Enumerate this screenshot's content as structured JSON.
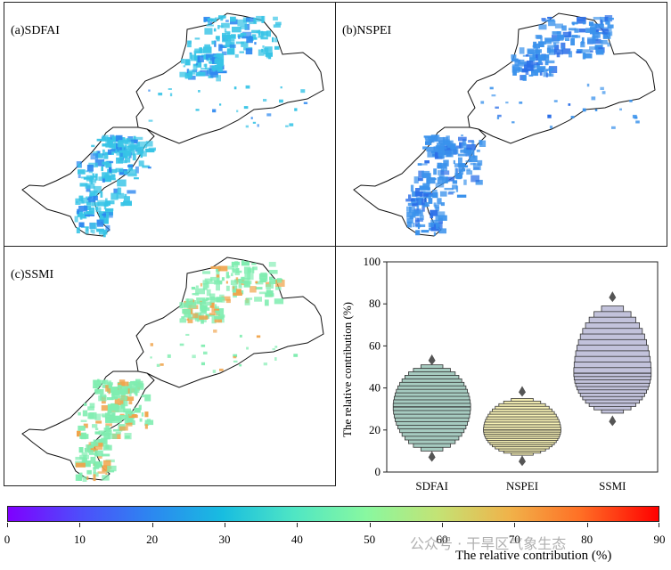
{
  "panels": {
    "a": {
      "label": "(a)SDFAI",
      "fill": "#37c4e6",
      "accent": "#2c87f0"
    },
    "b": {
      "label": "(b)NSPEI",
      "fill": "#3a92ec",
      "accent": "#2c6fe8"
    },
    "c": {
      "label": "(c)SSMI",
      "fill": "#7fedb0",
      "accent": "#f0a34a"
    }
  },
  "chart_data": {
    "type": "letter-value boxplot",
    "ylabel": "The relative contribution (%)",
    "ylim": [
      0,
      100
    ],
    "yticks": [
      0,
      20,
      40,
      60,
      80,
      100
    ],
    "categories": [
      "SDFAI",
      "NSPEI",
      "SSMI"
    ],
    "series": [
      {
        "name": "SDFAI",
        "median": 31,
        "q1": 25,
        "q3": 37,
        "min": 10,
        "max": 51,
        "outlier_low": 7,
        "outlier_high": 53,
        "color": "#a6cbc0"
      },
      {
        "name": "NSPEI",
        "median": 20,
        "q1": 17,
        "q3": 24,
        "min": 8,
        "max": 35,
        "outlier_low": 5,
        "outlier_high": 38,
        "color": "#f6f0b4"
      },
      {
        "name": "SSMI",
        "median": 47,
        "q1": 41,
        "q3": 54,
        "min": 28,
        "max": 79,
        "outlier_low": 24,
        "outlier_high": 83,
        "color": "#c2c2db"
      }
    ]
  },
  "colorbar": {
    "title": "The relative contribution (%)",
    "ticks": [
      "0",
      "10",
      "20",
      "30",
      "40",
      "50",
      "60",
      "70",
      "80",
      "90"
    ],
    "range": [
      0,
      90
    ]
  },
  "watermark": "公众号 · 干旱区气象生态"
}
